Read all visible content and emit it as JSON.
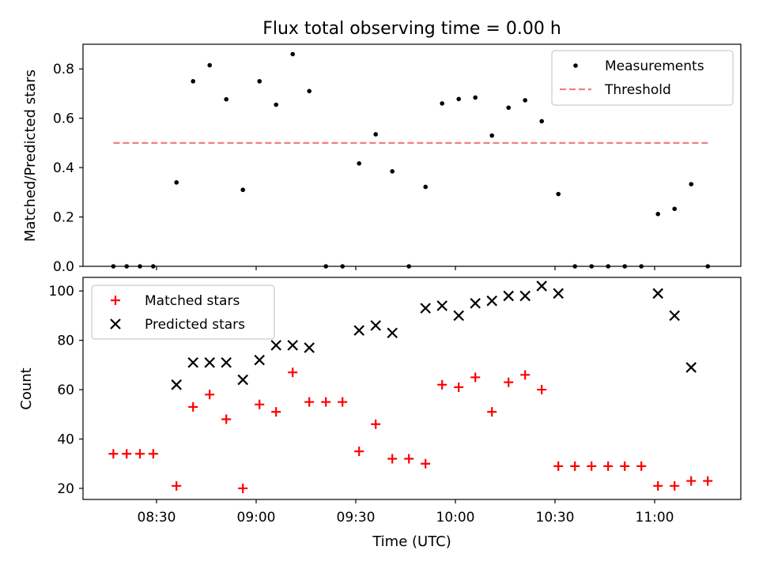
{
  "title": "Flux total observing time = 0.00 h",
  "chart_data": [
    {
      "type": "scatter",
      "ylabel": "Matched/Predicted stars",
      "ylim": [
        0,
        0.9
      ],
      "yticks": [
        "0.0",
        "0.2",
        "0.4",
        "0.6",
        "0.8"
      ],
      "legend_position": "top-right",
      "series": [
        {
          "name": "Measurements",
          "color": "#000000",
          "marker": "dot",
          "x": [
            "08:17",
            "08:21",
            "08:25",
            "08:29",
            "08:36",
            "08:41",
            "08:46",
            "08:51",
            "08:56",
            "09:01",
            "09:06",
            "09:11",
            "09:16",
            "09:21",
            "09:26",
            "09:31",
            "09:36",
            "09:41",
            "09:46",
            "09:51",
            "09:56",
            "10:01",
            "10:06",
            "10:11",
            "10:16",
            "10:21",
            "10:26",
            "10:31",
            "10:36",
            "10:41",
            "10:46",
            "10:51",
            "10:56",
            "11:01",
            "11:06",
            "11:11",
            "11:16"
          ],
          "y": [
            0,
            0,
            0,
            0,
            0.34,
            0.75,
            0.815,
            0.677,
            0.31,
            0.75,
            0.655,
            0.86,
            0.71,
            0,
            0,
            0.417,
            0.535,
            0.385,
            0,
            0.322,
            0.66,
            0.678,
            0.684,
            0.53,
            0.643,
            0.673,
            0.588,
            0.293,
            0,
            0,
            0,
            0,
            0,
            0.212,
            0.233,
            0.333,
            0
          ]
        },
        {
          "name": "Threshold",
          "color": "#f08080",
          "line_style": "dashed",
          "x": [
            "08:17",
            "11:16"
          ],
          "y": [
            0.5,
            0.5
          ]
        }
      ]
    },
    {
      "type": "scatter",
      "xlabel": "Time (UTC)",
      "ylabel": "Count",
      "ylim": [
        15.5,
        105.5
      ],
      "yticks": [
        "20",
        "40",
        "60",
        "80",
        "100"
      ],
      "xticks": [
        "08:30",
        "09:00",
        "09:30",
        "10:00",
        "10:30",
        "11:00"
      ],
      "legend_position": "top-left",
      "series": [
        {
          "name": "Matched stars",
          "color": "#ff0000",
          "marker": "plus",
          "x": [
            "08:17",
            "08:21",
            "08:25",
            "08:29",
            "08:36",
            "08:41",
            "08:46",
            "08:51",
            "08:56",
            "09:01",
            "09:06",
            "09:11",
            "09:16",
            "09:21",
            "09:26",
            "09:31",
            "09:36",
            "09:41",
            "09:46",
            "09:51",
            "09:56",
            "10:01",
            "10:06",
            "10:11",
            "10:16",
            "10:21",
            "10:26",
            "10:31",
            "10:36",
            "10:41",
            "10:46",
            "10:51",
            "10:56",
            "11:01",
            "11:06",
            "11:11",
            "11:16"
          ],
          "y": [
            34,
            34,
            34,
            34,
            21,
            53,
            58,
            48,
            20,
            54,
            51,
            67,
            55,
            55,
            55,
            35,
            46,
            32,
            32,
            30,
            62,
            61,
            65,
            51,
            63,
            66,
            60,
            29,
            29,
            29,
            29,
            29,
            29,
            21,
            21,
            23,
            23
          ]
        },
        {
          "name": "Predicted stars",
          "color": "#000000",
          "marker": "x",
          "x": [
            "08:36",
            "08:41",
            "08:46",
            "08:51",
            "08:56",
            "09:01",
            "09:06",
            "09:11",
            "09:16",
            "09:31",
            "09:36",
            "09:41",
            "09:51",
            "09:56",
            "10:01",
            "10:06",
            "10:11",
            "10:16",
            "10:21",
            "10:26",
            "10:31",
            "11:01",
            "11:06",
            "11:11"
          ],
          "y": [
            62,
            71,
            71,
            71,
            64,
            72,
            78,
            78,
            77,
            84,
            86,
            83,
            93,
            94,
            90,
            95,
            96,
            98,
            98,
            102,
            99,
            99,
            90,
            69
          ]
        }
      ]
    }
  ]
}
